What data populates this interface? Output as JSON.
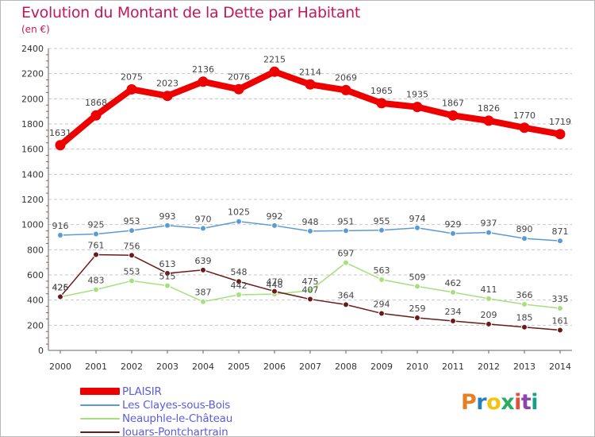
{
  "header": {
    "title": "Evolution du Montant de la Dette par Habitant",
    "subtitle": "(en €)"
  },
  "logo": {
    "text": "Proxiti",
    "colors": [
      "#e67e22",
      "#2980b9",
      "#f1c40f",
      "#27ae60",
      "#e74c3c",
      "#8e44ad",
      "#16a085"
    ]
  },
  "chart_data": {
    "type": "line",
    "title": "Evolution du Montant de la Dette par Habitant",
    "subtitle": "(en €)",
    "xlabel": "",
    "ylabel": "",
    "x": [
      "2000",
      "2001",
      "2002",
      "2003",
      "2004",
      "2005",
      "2006",
      "2007",
      "2008",
      "2009",
      "2010",
      "2011",
      "2012",
      "2013",
      "2014"
    ],
    "yticks": [
      0,
      200,
      400,
      600,
      800,
      1000,
      1200,
      1400,
      1600,
      1800,
      2000,
      2200,
      2400
    ],
    "ylim": [
      0,
      2400
    ],
    "grid": "horizontal dashed",
    "legend_position": "bottom-left",
    "series": [
      {
        "name": "PLAISIR",
        "color": "#ee0000",
        "emphasis": true,
        "values": [
          1631,
          1868,
          2075,
          2023,
          2136,
          2076,
          2215,
          2114,
          2069,
          1965,
          1935,
          1867,
          1826,
          1770,
          1719
        ]
      },
      {
        "name": "Les Clayes-sous-Bois",
        "color": "#5b9bd5",
        "emphasis": false,
        "values": [
          916,
          925,
          953,
          993,
          970,
          1025,
          992,
          948,
          951,
          955,
          974,
          929,
          937,
          890,
          871
        ]
      },
      {
        "name": "Neauphle-le-Château",
        "color": "#a6e07c",
        "emphasis": false,
        "values": [
          425,
          483,
          553,
          515,
          387,
          442,
          448,
          475,
          697,
          563,
          509,
          462,
          411,
          366,
          335
        ]
      },
      {
        "name": "Jouars-Pontchartrain",
        "color": "#6b1a1a",
        "emphasis": false,
        "values": [
          426,
          761,
          756,
          613,
          639,
          548,
          470,
          407,
          364,
          294,
          259,
          234,
          209,
          185,
          161
        ]
      }
    ]
  }
}
